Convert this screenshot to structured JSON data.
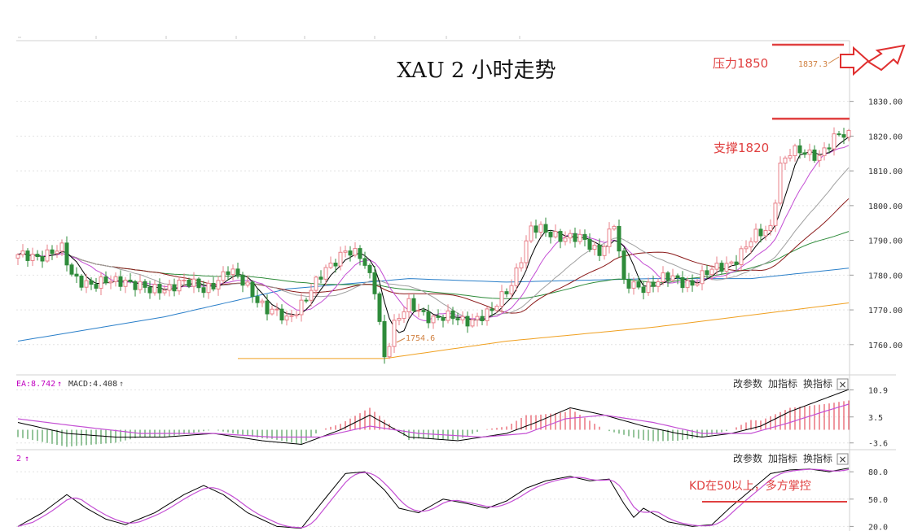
{
  "title": "XAU 2 小时走势",
  "annotations": {
    "resistance": "压力1850",
    "support": "支撑1820",
    "kd_note": "KD在50以上，多方掌控",
    "low_label": "1754.6",
    "high_label": "1837.3"
  },
  "toolbar_labels": {
    "edit_params": "改参数",
    "add_indicator": "加指标",
    "switch_indicator": "换指标",
    "close": "×"
  },
  "macd_header": {
    "ea": "EA:8.742",
    "macd": "MACD:4.408",
    "ea_arrow": "↑",
    "macd_arrow": "↑"
  },
  "kd_header": {
    "value": "2",
    "arrow": "↑"
  },
  "colors": {
    "up": "#e8808a",
    "down": "#2e8b3a",
    "ma5": "#000000",
    "ma10": "#c44fd4",
    "ma20": "#a0a0a0",
    "ma30": "#8b1a1a",
    "ma60": "#2e8b3a",
    "ma120": "#2a7fc9",
    "ma250": "#f0a020",
    "annotation": "#e04040",
    "accent_magenta": "#c000c0"
  },
  "chart_data": [
    {
      "type": "candlestick",
      "title": "XAU 2 小时走势",
      "y_ticks": [
        "1830.00",
        "1820.00",
        "1810.00",
        "1800.00",
        "1790.00",
        "1780.00",
        "1770.00",
        "1760.00"
      ],
      "ylim": [
        1752,
        1847
      ],
      "grid": true,
      "low_marker": 1754.6,
      "high_marker": 1837.3,
      "resistance_level": 1850,
      "support_level": 1820,
      "series": [
        {
          "name": "price",
          "waypoints": [
            [
              0,
              1785
            ],
            [
              9,
              1787
            ],
            [
              11,
              1780
            ],
            [
              16,
              1777
            ],
            [
              22,
              1779
            ],
            [
              27,
              1775
            ],
            [
              33,
              1778
            ],
            [
              38,
              1776
            ],
            [
              43,
              1781
            ],
            [
              47,
              1777
            ],
            [
              51,
              1770
            ],
            [
              55,
              1767
            ],
            [
              59,
              1774
            ],
            [
              63,
              1781
            ],
            [
              67,
              1788
            ],
            [
              70,
              1785
            ],
            [
              73,
              1776
            ],
            [
              75,
              1757
            ],
            [
              77,
              1766
            ],
            [
              80,
              1771
            ],
            [
              85,
              1768
            ],
            [
              91,
              1767
            ],
            [
              97,
              1769
            ],
            [
              101,
              1778
            ],
            [
              105,
              1793
            ],
            [
              110,
              1792
            ],
            [
              115,
              1790
            ],
            [
              119,
              1787
            ],
            [
              122,
              1795
            ],
            [
              124,
              1777
            ],
            [
              128,
              1777
            ],
            [
              133,
              1779
            ],
            [
              138,
              1778
            ],
            [
              142,
              1781
            ],
            [
              147,
              1785
            ],
            [
              151,
              1791
            ],
            [
              154,
              1794
            ],
            [
              156,
              1812
            ],
            [
              158,
              1815
            ],
            [
              164,
              1815
            ],
            [
              167,
              1819
            ],
            [
              169,
              1820
            ]
          ]
        },
        {
          "name": "MA5",
          "smoothing": 5
        },
        {
          "name": "MA10",
          "smoothing": 10
        },
        {
          "name": "MA20",
          "smoothing": 20
        },
        {
          "name": "MA30",
          "smoothing": 30
        },
        {
          "name": "MA60",
          "smoothing": 60
        },
        {
          "name": "MA120",
          "waypoints": [
            [
              0,
              1761
            ],
            [
              30,
              1768
            ],
            [
              55,
              1776
            ],
            [
              80,
              1779
            ],
            [
              100,
              1778
            ],
            [
              130,
              1779
            ],
            [
              150,
              1779
            ],
            [
              170,
              1782
            ]
          ]
        },
        {
          "name": "MA250",
          "waypoints": [
            [
              45,
              1756
            ],
            [
              75,
              1756
            ],
            [
              100,
              1761
            ],
            [
              130,
              1765
            ],
            [
              170,
              1772
            ]
          ]
        }
      ]
    },
    {
      "type": "macd",
      "y_ticks": [
        "10.9",
        "3.5",
        "-3.6"
      ],
      "ylim": [
        -5,
        13
      ],
      "series": [
        {
          "name": "DIF",
          "waypoints": [
            [
              0,
              2
            ],
            [
              10,
              -1
            ],
            [
              20,
              -2
            ],
            [
              30,
              -2
            ],
            [
              40,
              -1
            ],
            [
              50,
              -3
            ],
            [
              58,
              -4
            ],
            [
              66,
              0
            ],
            [
              72,
              4
            ],
            [
              80,
              -2
            ],
            [
              90,
              -3
            ],
            [
              100,
              -1
            ],
            [
              106,
              2
            ],
            [
              113,
              6
            ],
            [
              120,
              4
            ],
            [
              128,
              1
            ],
            [
              135,
              -1
            ],
            [
              140,
              -2
            ],
            [
              146,
              -1
            ],
            [
              152,
              1
            ],
            [
              158,
              5
            ],
            [
              164,
              8
            ],
            [
              170,
              11
            ]
          ]
        },
        {
          "name": "DEA",
          "waypoints": [
            [
              0,
              3
            ],
            [
              12,
              1
            ],
            [
              25,
              -1
            ],
            [
              40,
              -1
            ],
            [
              52,
              -2
            ],
            [
              62,
              -2
            ],
            [
              72,
              1
            ],
            [
              82,
              -1
            ],
            [
              95,
              -2
            ],
            [
              104,
              -1
            ],
            [
              112,
              3
            ],
            [
              120,
              4
            ],
            [
              130,
              2
            ],
            [
              140,
              -1
            ],
            [
              150,
              -1
            ],
            [
              158,
              2
            ],
            [
              165,
              5
            ],
            [
              170,
              7
            ]
          ]
        }
      ]
    },
    {
      "type": "kd",
      "y_ticks": [
        "80.0",
        "50.0",
        "20.0"
      ],
      "ylim": [
        15,
        98
      ],
      "series": [
        {
          "name": "K",
          "waypoints": [
            [
              0,
              20
            ],
            [
              5,
              35
            ],
            [
              10,
              55
            ],
            [
              14,
              40
            ],
            [
              18,
              28
            ],
            [
              22,
              22
            ],
            [
              28,
              35
            ],
            [
              34,
              55
            ],
            [
              38,
              65
            ],
            [
              42,
              55
            ],
            [
              47,
              35
            ],
            [
              53,
              20
            ],
            [
              58,
              18
            ],
            [
              62,
              45
            ],
            [
              67,
              78
            ],
            [
              71,
              80
            ],
            [
              75,
              60
            ],
            [
              78,
              40
            ],
            [
              82,
              35
            ],
            [
              87,
              50
            ],
            [
              92,
              45
            ],
            [
              96,
              40
            ],
            [
              100,
              48
            ],
            [
              104,
              62
            ],
            [
              108,
              70
            ],
            [
              113,
              75
            ],
            [
              117,
              70
            ],
            [
              121,
              72
            ],
            [
              124,
              45
            ],
            [
              126,
              30
            ],
            [
              128,
              40
            ],
            [
              133,
              25
            ],
            [
              138,
              20
            ],
            [
              142,
              22
            ],
            [
              146,
              42
            ],
            [
              150,
              60
            ],
            [
              154,
              78
            ],
            [
              158,
              82
            ],
            [
              162,
              83
            ],
            [
              166,
              80
            ],
            [
              170,
              84
            ]
          ]
        },
        {
          "name": "D",
          "smoothing": 4
        }
      ]
    }
  ]
}
